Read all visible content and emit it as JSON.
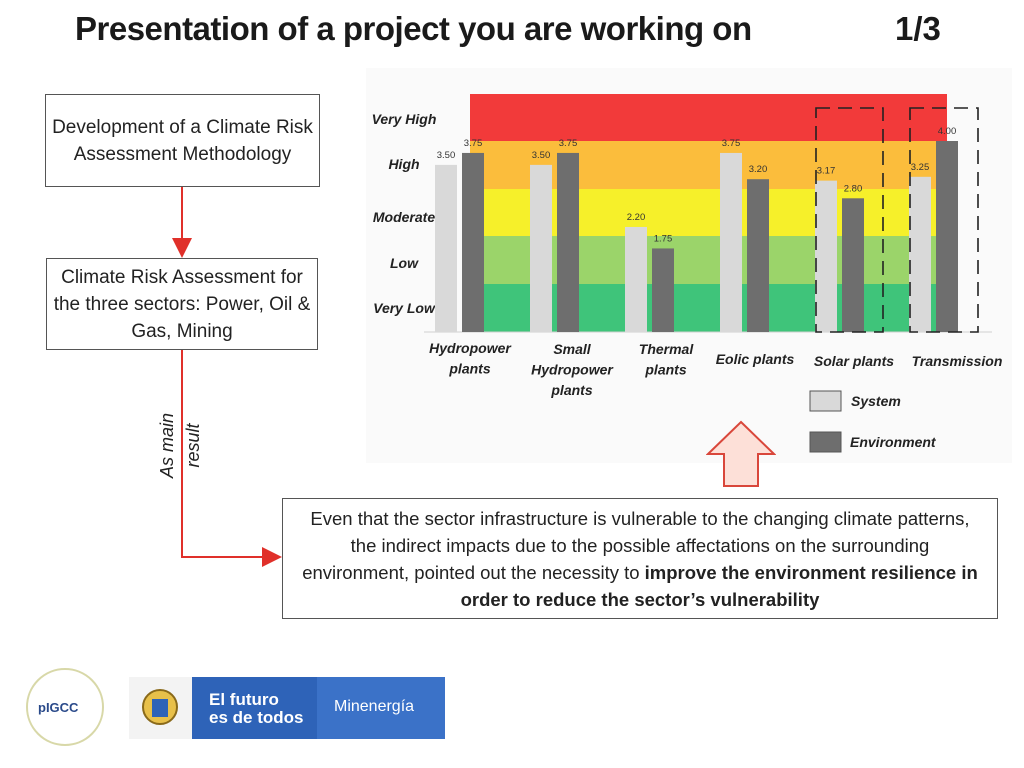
{
  "title": "Presentation of a project you are working on",
  "page_number": "1/3",
  "flow": {
    "box1": "Development of a Climate Risk Assessment Methodology",
    "box2": "Climate Risk Assessment for the three sectors: Power, Oil & Gas, Mining",
    "side_label": [
      "As main",
      "result"
    ],
    "conclusion_plain": "Even that the sector infrastructure is vulnerable to the changing climate patterns, the indirect impacts due to the possible affectations on the surrounding environment, pointed out the necessity to ",
    "conclusion_bold": "improve the environment resilience in order to reduce the sector’s vulnerability"
  },
  "colors": {
    "very_high": "#f23a3a",
    "high": "#fbbd3c",
    "moderate": "#f6f02a",
    "low": "#9bd46a",
    "very_low": "#3fc47a",
    "system": "#d9d9d9",
    "environment": "#6e6e6e",
    "arrow_fill": "#fde0d8",
    "arrow_stroke": "#d9473b",
    "flow_arrow": "#e0302a"
  },
  "chart_data": {
    "type": "bar",
    "categories": [
      "Hydropower plants",
      "Small Hydropower plants",
      "Thermal plants",
      "Eolic plants",
      "Solar plants",
      "Transmission"
    ],
    "series": [
      {
        "name": "System",
        "values": [
          3.5,
          3.5,
          2.2,
          3.75,
          3.17,
          3.25
        ]
      },
      {
        "name": "Environment",
        "values": [
          3.75,
          3.75,
          1.75,
          3.2,
          2.8,
          4.0
        ]
      }
    ],
    "value_labels": {
      "System": [
        "3.50",
        "3.50",
        "2.20",
        "3.75",
        "3.17",
        "3.25"
      ],
      "Environment": [
        "3.75",
        "3.75",
        "1.75",
        "3.20",
        "2.80",
        "4.00"
      ]
    },
    "risk_levels": [
      "Very Low",
      "Low",
      "Moderate",
      "High",
      "Very High"
    ],
    "highlighted_categories": [
      "Solar plants",
      "Transmission"
    ],
    "legend_position": "bottom-right",
    "grid": false
  }
}
